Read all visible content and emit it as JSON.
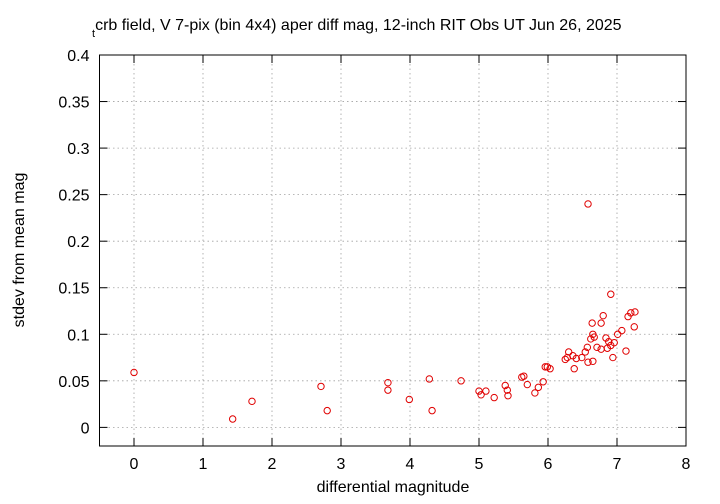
{
  "chart_data": {
    "type": "scatter",
    "title_subscript": "t",
    "title": "crb field, V 7-pix (bin 4x4) aper diff mag,  12-inch RIT Obs UT Jun 26, 2025",
    "x_label": "differential magnitude",
    "y_label": "stdev from mean mag",
    "xlim": [
      -0.5,
      8
    ],
    "xticks": [
      0,
      1,
      2,
      3,
      4,
      5,
      6,
      7,
      8
    ],
    "ylim": [
      -0.02,
      0.4
    ],
    "yticks": [
      0,
      0.05,
      0.1,
      0.15,
      0.2,
      0.25,
      0.3,
      0.35,
      0.4
    ],
    "grid": true,
    "color": "#e00000",
    "x": [
      0,
      1.43,
      1.71,
      2.71,
      2.8,
      3.68,
      3.68,
      3.99,
      4.28,
      4.32,
      4.74,
      5.0,
      5.03,
      5.1,
      5.22,
      5.38,
      5.41,
      5.42,
      5.62,
      5.65,
      5.7,
      5.81,
      5.86,
      5.93,
      5.96,
      5.99,
      6.03,
      6.25,
      6.28,
      6.3,
      6.36,
      6.38,
      6.41,
      6.49,
      6.54,
      6.57,
      6.58,
      6.58,
      6.62,
      6.64,
      6.65,
      6.67,
      6.65,
      6.71,
      6.77,
      6.77,
      6.8,
      6.84,
      6.86,
      6.88,
      6.91,
      6.91,
      6.94,
      6.96,
      7.01,
      7.07,
      7.13,
      7.16,
      7.2,
      7.25,
      7.26
    ],
    "values": [
      0.059,
      0.009,
      0.028,
      0.044,
      0.018,
      0.048,
      0.04,
      0.03,
      0.052,
      0.018,
      0.05,
      0.039,
      0.035,
      0.039,
      0.032,
      0.045,
      0.04,
      0.034,
      0.054,
      0.055,
      0.046,
      0.037,
      0.043,
      0.049,
      0.065,
      0.065,
      0.063,
      0.073,
      0.075,
      0.081,
      0.077,
      0.063,
      0.074,
      0.075,
      0.081,
      0.086,
      0.24,
      0.07,
      0.095,
      0.112,
      0.1,
      0.097,
      0.071,
      0.086,
      0.084,
      0.112,
      0.12,
      0.096,
      0.085,
      0.092,
      0.143,
      0.088,
      0.075,
      0.091,
      0.1,
      0.104,
      0.082,
      0.119,
      0.123,
      0.108,
      0.124
    ]
  }
}
